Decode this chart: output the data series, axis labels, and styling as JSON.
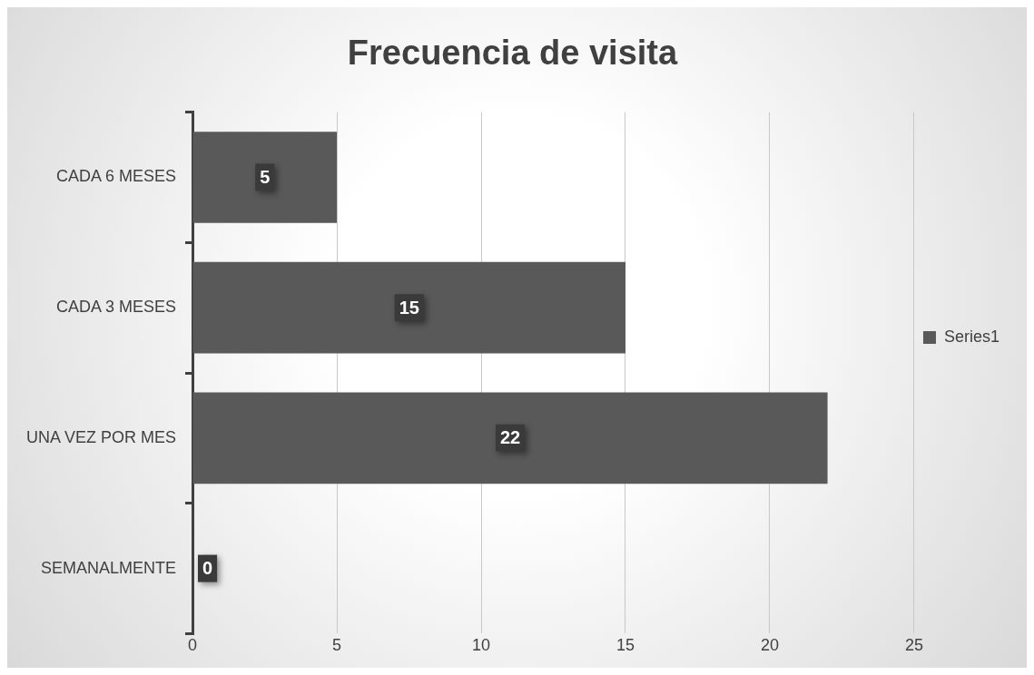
{
  "chart_data": {
    "type": "bar",
    "orientation": "horizontal",
    "title": "Frecuencia de visita",
    "categories": [
      "CADA 6 MESES",
      "CADA 3 MESES",
      "UNA VEZ POR MES",
      "SEMANALMENTE"
    ],
    "series": [
      {
        "name": "Series1",
        "color": "#595959",
        "values": [
          5,
          15,
          22,
          0
        ]
      }
    ],
    "xlim": [
      0,
      25
    ],
    "xticks": [
      0,
      5,
      10,
      15,
      20,
      25
    ],
    "grid": "x",
    "legend": "right",
    "data_labels": true
  }
}
